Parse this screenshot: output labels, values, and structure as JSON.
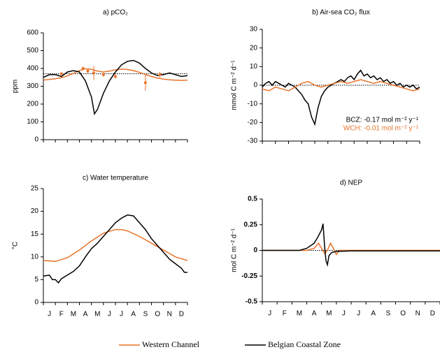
{
  "chart_data": [
    {
      "type": "line",
      "title": "a) pCO₂",
      "ylabel": "ppm",
      "xlim": [
        0,
        12
      ],
      "ylim": [
        0,
        600
      ],
      "yticks": [
        0,
        100,
        200,
        300,
        400,
        500,
        600
      ],
      "hline": 370,
      "series": [
        {
          "name": "Western Channel",
          "color": "#e8732a",
          "x": [
            0,
            0.5,
            1,
            1.5,
            2,
            2.5,
            3,
            3.5,
            4,
            4.5,
            5,
            5.5,
            6,
            6.5,
            7,
            7.5,
            8,
            8.5,
            9,
            9.5,
            10,
            10.5,
            11,
            11.5,
            12
          ],
          "values": [
            335,
            338,
            342,
            348,
            358,
            372,
            388,
            398,
            395,
            385,
            380,
            385,
            392,
            396,
            394,
            388,
            378,
            366,
            355,
            346,
            340,
            336,
            334,
            333,
            334
          ]
        },
        {
          "name": "Belgian Coastal Zone",
          "color": "#000000",
          "x": [
            0,
            0.5,
            1,
            1.5,
            2,
            2.5,
            3,
            3.5,
            4,
            4.25,
            4.5,
            5,
            5.5,
            6,
            6.5,
            7,
            7.5,
            8,
            8.5,
            9,
            9.5,
            10,
            10.5,
            11,
            11.5,
            12
          ],
          "values": [
            350,
            365,
            365,
            355,
            380,
            388,
            380,
            330,
            240,
            145,
            170,
            260,
            330,
            380,
            420,
            440,
            445,
            430,
            400,
            375,
            360,
            365,
            375,
            365,
            355,
            360
          ]
        },
        {
          "color": "#e8732a",
          "style": "points",
          "x": [
            1.5,
            3.3,
            3.7,
            4.2,
            5,
            6,
            8.5,
            9.7
          ],
          "values": [
            370,
            400,
            385,
            375,
            365,
            355,
            320,
            365
          ],
          "errors": [
            8,
            10,
            10,
            40,
            12,
            12,
            45,
            15
          ]
        }
      ]
    },
    {
      "type": "line",
      "title": "b) Air-sea CO₂ flux",
      "ylabel": "mmol C m⁻² d⁻¹",
      "xlim": [
        0,
        12
      ],
      "ylim": [
        -30,
        30
      ],
      "yticks": [
        -30,
        -20,
        -10,
        0,
        10,
        20,
        30
      ],
      "hline": 0,
      "annotations": [
        {
          "text": "BCZ: -0.17 mol m⁻² y⁻¹",
          "color": "#000000"
        },
        {
          "text": "WCH: -0.01 mol m⁻² y⁻¹",
          "color": "#e8732a"
        }
      ],
      "series": [
        {
          "color": "#000000",
          "x": [
            0,
            0.25,
            0.5,
            0.75,
            1,
            1.25,
            1.5,
            1.75,
            2,
            2.25,
            2.5,
            2.75,
            3,
            3.25,
            3.5,
            3.75,
            4,
            4.25,
            4.5,
            4.75,
            5,
            5.25,
            5.5,
            5.75,
            6,
            6.25,
            6.5,
            6.75,
            7,
            7.25,
            7.5,
            7.75,
            8,
            8.25,
            8.5,
            8.75,
            9,
            9.25,
            9.5,
            9.75,
            10,
            10.25,
            10.5,
            10.75,
            11,
            11.25,
            11.5,
            11.75,
            12
          ],
          "values": [
            -1,
            1,
            2,
            0,
            2,
            1,
            0,
            -1,
            1,
            0,
            -1,
            -3,
            -5,
            -8,
            -10,
            -17,
            -21,
            -12,
            -6,
            -3,
            -1,
            0,
            1,
            2,
            3,
            2,
            4,
            5,
            3,
            6,
            8,
            5,
            6,
            4,
            5,
            3,
            4,
            2,
            3,
            1,
            2,
            0,
            1,
            -1,
            0,
            -1,
            0,
            -2,
            -1
          ]
        },
        {
          "color": "#e8732a",
          "x": [
            0,
            0.5,
            1,
            1.5,
            2,
            2.5,
            3,
            3.5,
            4,
            4.5,
            5,
            5.5,
            6,
            6.5,
            7,
            7.5,
            8,
            8.5,
            9,
            9.5,
            10,
            10.5,
            11,
            11.5,
            12
          ],
          "values": [
            -2,
            -3,
            -1,
            -2,
            -3,
            -1,
            1,
            2,
            0,
            -1,
            0,
            1,
            2,
            1,
            2,
            3,
            2,
            1,
            2,
            1,
            0,
            -1,
            -2,
            -3,
            -2
          ]
        }
      ]
    },
    {
      "type": "line",
      "title": "c) Water temperature",
      "ylabel": "°C",
      "xlim": [
        0,
        12
      ],
      "ylim": [
        0,
        25
      ],
      "yticks": [
        0,
        5,
        10,
        15,
        20,
        25
      ],
      "categories": [
        "J",
        "F",
        "M",
        "A",
        "M",
        "J",
        "J",
        "A",
        "S",
        "O",
        "N",
        "D"
      ],
      "series": [
        {
          "color": "#e8732a",
          "x": [
            0,
            1,
            2,
            3,
            4,
            5,
            6,
            6.5,
            7,
            8,
            9,
            10,
            11,
            12
          ],
          "values": [
            9.2,
            9,
            9.8,
            11.5,
            13.5,
            15.2,
            16,
            16,
            15.7,
            14.5,
            13,
            11.5,
            10,
            9.2
          ]
        },
        {
          "color": "#000000",
          "x": [
            0,
            0.5,
            0.75,
            1,
            1.25,
            1.5,
            2,
            2.5,
            3,
            3.5,
            4,
            4.5,
            5,
            5.5,
            6,
            6.5,
            7,
            7.5,
            8,
            8.5,
            9,
            9.5,
            10,
            10.5,
            11,
            11.5,
            11.75,
            12
          ],
          "values": [
            5.8,
            6,
            5,
            5,
            4.3,
            5.2,
            6,
            6.8,
            8,
            10,
            11.8,
            13,
            14.5,
            16,
            17.5,
            18.5,
            19.2,
            19,
            17.5,
            16,
            14,
            12.5,
            11,
            9.5,
            8.5,
            7.5,
            6.6,
            6.6
          ]
        }
      ]
    },
    {
      "type": "line",
      "title": "d) NEP",
      "ylabel": "mol C m⁻² d⁻¹",
      "xlim": [
        0,
        12
      ],
      "ylim": [
        -0.5,
        0.5
      ],
      "yticks": [
        -0.5,
        -0.25,
        0,
        0.25,
        0.5
      ],
      "hline": 0,
      "categories": [
        "J",
        "F",
        "M",
        "A",
        "M",
        "J",
        "J",
        "A",
        "S",
        "O",
        "N",
        "D"
      ],
      "series": [
        {
          "color": "#e8732a",
          "x": [
            0,
            3,
            3.5,
            3.8,
            4,
            4.2,
            4.4,
            4.6,
            4.8,
            5,
            5.2,
            12
          ],
          "values": [
            0,
            0,
            0.02,
            0.07,
            0.02,
            -0.03,
            0,
            0.07,
            0.02,
            -0.04,
            0,
            0
          ]
        },
        {
          "color": "#000000",
          "x": [
            0,
            2.5,
            3,
            3.5,
            3.75,
            4,
            4.1,
            4.2,
            4.3,
            4.4,
            4.5,
            4.7,
            5,
            6,
            12
          ],
          "values": [
            0,
            0,
            0.02,
            0.07,
            0.13,
            0.2,
            0.26,
            0.05,
            -0.1,
            -0.14,
            -0.05,
            -0.02,
            -0.01,
            -0.005,
            -0.005
          ]
        }
      ]
    }
  ]
}
